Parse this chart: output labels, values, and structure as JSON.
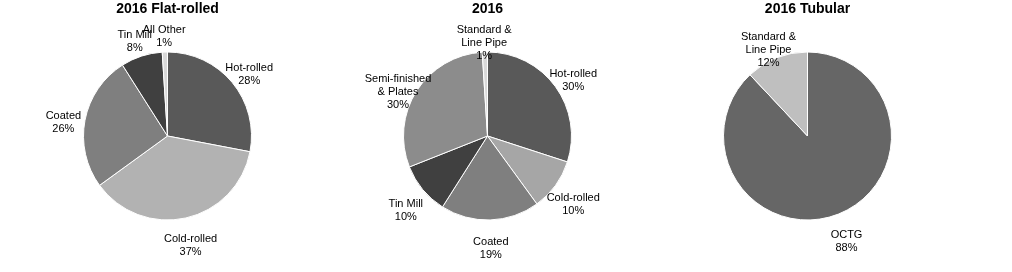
{
  "chart_data": [
    {
      "type": "pie",
      "title": "2016 Flat-rolled",
      "categories": [
        "Hot-rolled",
        "Cold-rolled",
        "Coated",
        "Tin Mill",
        "All Other"
      ],
      "values": [
        28,
        37,
        26,
        8,
        1
      ],
      "value_labels": [
        "28%",
        "37%",
        "26%",
        "8%",
        "1%"
      ],
      "colors": [
        "#595959",
        "#b2b2b2",
        "#7f7f7f",
        "#404040",
        "#d9d9d9"
      ]
    },
    {
      "type": "pie",
      "title": "2016",
      "categories": [
        "Hot-rolled",
        "Cold-rolled",
        "Coated",
        "Tin Mill",
        "Semi-finished & Plates",
        "Standard & Line Pipe"
      ],
      "values": [
        30,
        10,
        19,
        10,
        30,
        1
      ],
      "value_labels": [
        "30%",
        "10%",
        "19%",
        "10%",
        "30%",
        "1%"
      ],
      "colors": [
        "#595959",
        "#a6a6a6",
        "#7f7f7f",
        "#404040",
        "#8c8c8c",
        "#d9d9d9"
      ]
    },
    {
      "type": "pie",
      "title": "2016 Tubular",
      "categories": [
        "OCTG",
        "Standard & Line Pipe"
      ],
      "values": [
        88,
        12
      ],
      "value_labels": [
        "88%",
        "12%"
      ],
      "colors": [
        "#666666",
        "#bfbfbf"
      ]
    }
  ]
}
